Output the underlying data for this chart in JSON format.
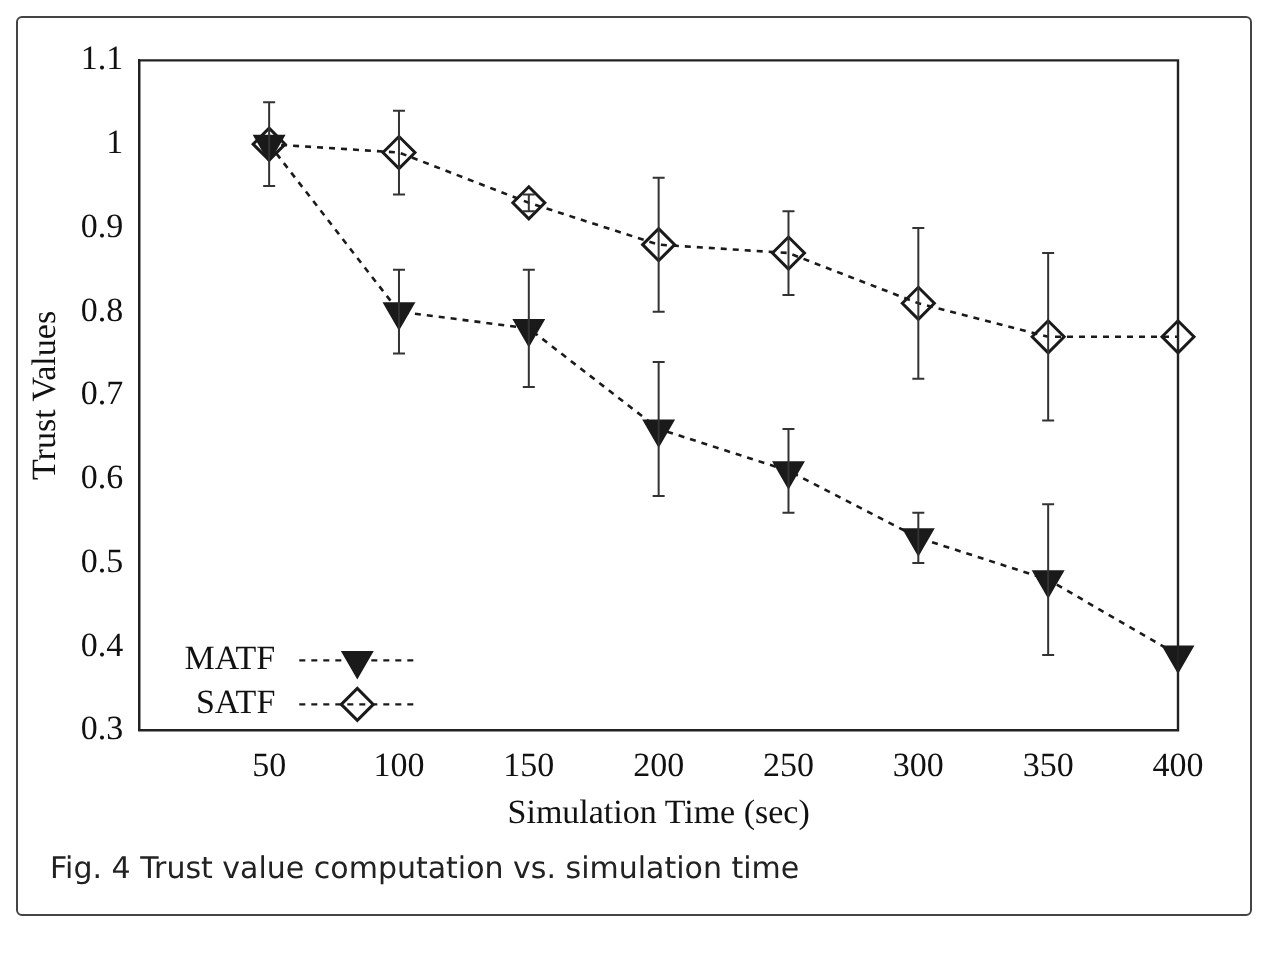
{
  "chart_data": {
    "type": "line",
    "xlabel": "Simulation Time (sec)",
    "ylabel": "Trust Values",
    "x": [
      50,
      100,
      150,
      200,
      250,
      300,
      350,
      400
    ],
    "xlim": [
      0,
      400
    ],
    "xticks": [
      50,
      100,
      150,
      200,
      250,
      300,
      350,
      400
    ],
    "ylim": [
      0.3,
      1.1
    ],
    "yticks": [
      0.3,
      0.4,
      0.5,
      0.6,
      0.7,
      0.8,
      0.9,
      1,
      1.1
    ],
    "grid": false,
    "legend": "bottom left",
    "line_style": "dashed",
    "series": [
      {
        "name": "MATF",
        "color": "#1a1a1a",
        "marker": "triangle",
        "values": [
          1.0,
          0.8,
          0.78,
          0.66,
          0.61,
          0.53,
          0.48,
          0.39
        ],
        "errors": [
          [
            0.95,
            1.05
          ],
          [
            0.75,
            0.85
          ],
          [
            0.71,
            0.85
          ],
          [
            0.58,
            0.74
          ],
          [
            0.56,
            0.66
          ],
          [
            0.5,
            0.56
          ],
          [
            0.39,
            0.57
          ],
          null
        ]
      },
      {
        "name": "SATF",
        "color": "#1a1a1a",
        "marker": "diamond",
        "values": [
          1.0,
          0.99,
          0.93,
          0.88,
          0.87,
          0.81,
          0.77,
          0.77
        ],
        "errors": [
          null,
          [
            0.94,
            1.04
          ],
          [
            0.92,
            0.94
          ],
          [
            0.8,
            0.96
          ],
          [
            0.82,
            0.92
          ],
          [
            0.72,
            0.9
          ],
          [
            0.67,
            0.87
          ],
          null
        ]
      }
    ],
    "annotations": [
      "Fig. 4 Trust value computation vs. simulation time"
    ]
  }
}
